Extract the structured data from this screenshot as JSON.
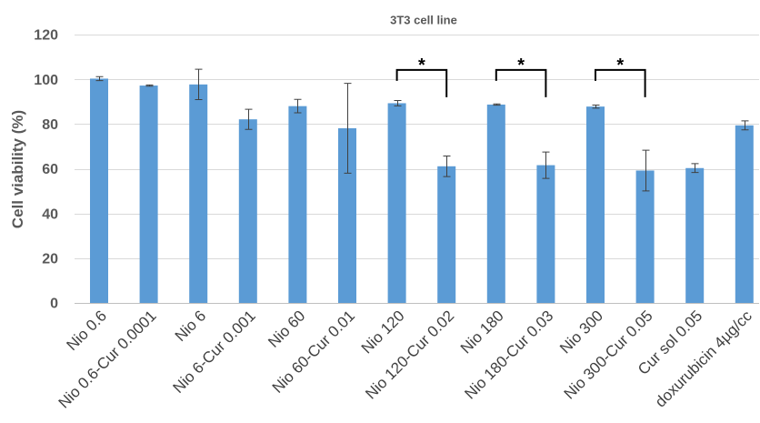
{
  "chart_data": {
    "type": "bar",
    "title": "3T3 cell line",
    "ylabel": "Cell viability (%)",
    "ylim": [
      0,
      120
    ],
    "yticks": [
      0,
      20,
      40,
      60,
      80,
      100,
      120
    ],
    "grid": true,
    "legend": "none",
    "categories": [
      "Nio 0.6",
      "Nio 0.6-Cur 0.0001",
      "Nio 6",
      "Nio 6-Cur 0.001",
      "Nio 60",
      "Nio 60-Cur 0.01",
      "Nio 120",
      "Nio 120-Cur 0.02",
      "Nio 180",
      "Nio 180-Cur 0.03",
      "Nio 300",
      "Nio 300-Cur 0.05",
      "Cur sol 0.05",
      "doxurubicin 4µg/cc"
    ],
    "values": [
      100.3,
      97.2,
      97.7,
      82.1,
      88.0,
      78.1,
      89.3,
      61.1,
      88.7,
      61.6,
      87.8,
      59.2,
      60.3,
      79.4
    ],
    "errors": [
      0.9,
      0.3,
      6.8,
      4.5,
      3.0,
      20.1,
      1.2,
      4.6,
      0.3,
      5.9,
      0.7,
      9.1,
      2.0,
      2.0
    ],
    "annotations": [
      {
        "from": 6,
        "to": 7,
        "label": "*"
      },
      {
        "from": 8,
        "to": 9,
        "label": "*"
      },
      {
        "from": 10,
        "to": 11,
        "label": "*"
      }
    ],
    "colors": {
      "bars": "#5b9bd5",
      "error_bars": "#404040",
      "brackets": "#000000"
    }
  }
}
